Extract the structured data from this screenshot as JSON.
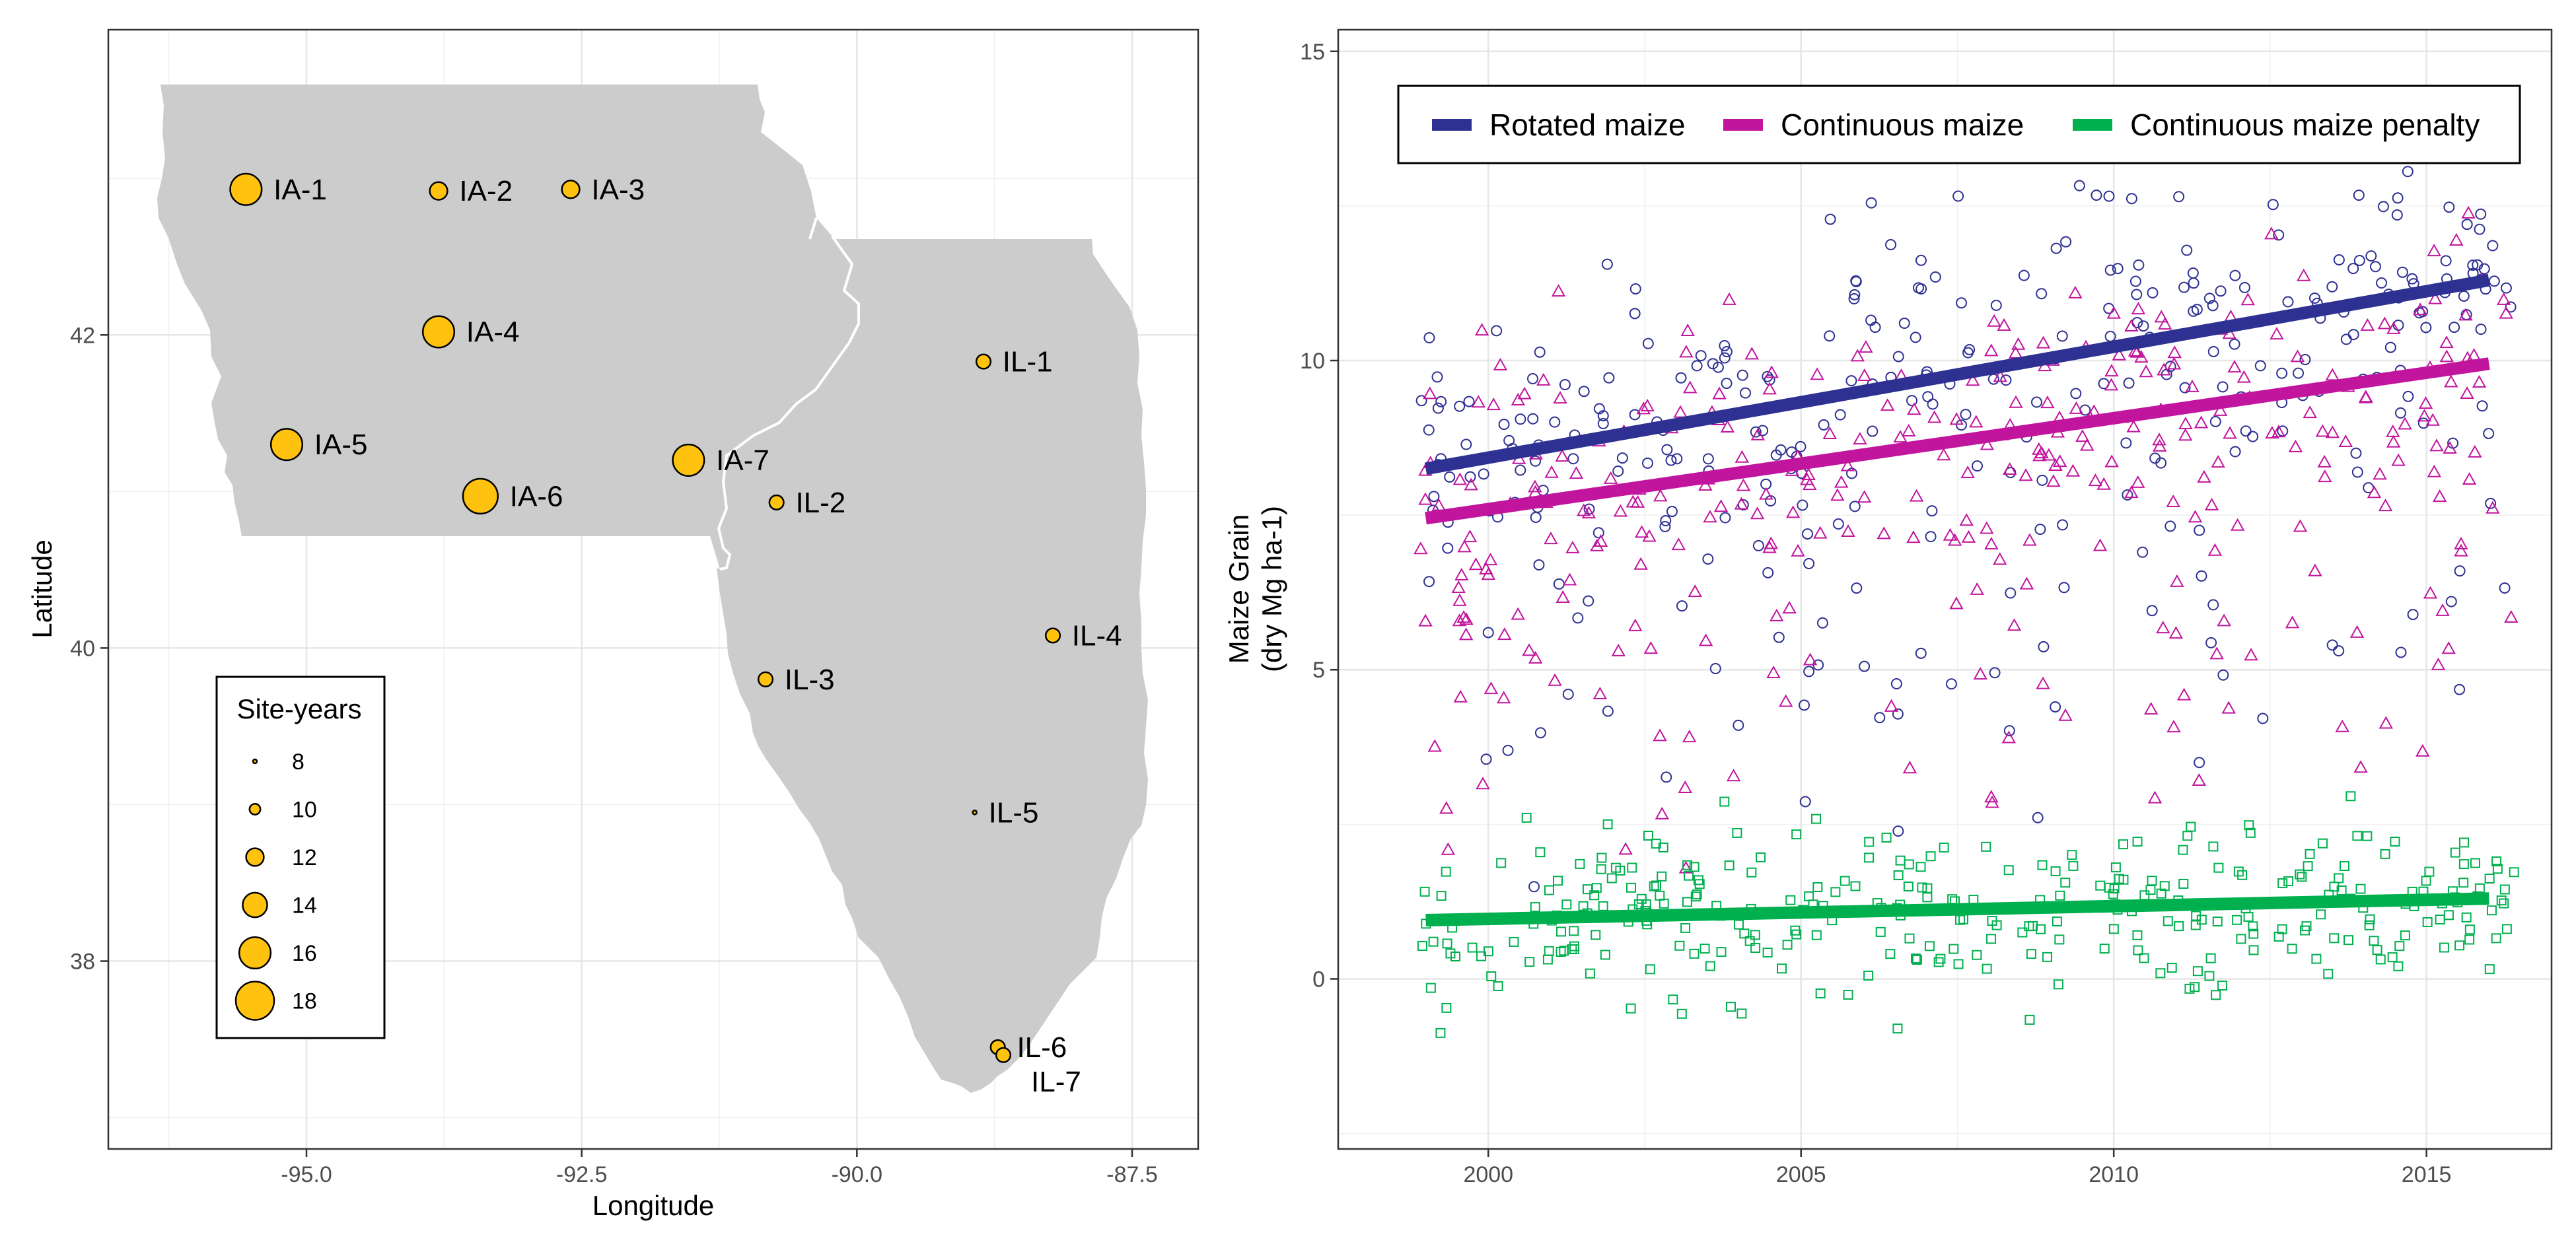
{
  "chart_data": [
    {
      "type": "scatter",
      "xlabel": "Longitude",
      "ylabel": "Latitude",
      "xlim": [
        -96.8,
        -86.9
      ],
      "ylim": [
        36.8,
        43.95
      ],
      "xticks": [
        -95.0,
        -92.5,
        -90.0,
        -87.5
      ],
      "xtick_labels": [
        "-95.0",
        "-92.5",
        "-90.0",
        "-87.5"
      ],
      "yticks": [
        38,
        40,
        42
      ],
      "ytick_labels": [
        "38",
        "40",
        "42"
      ],
      "grid": true,
      "colors": {
        "state_fill": "#cccccc",
        "border": "#ffffff",
        "point_fill": "#ffc20e",
        "point_stroke": "#000000"
      },
      "sites": [
        {
          "label": "IA-1",
          "lon": -95.55,
          "lat": 42.93,
          "site_years": 16
        },
        {
          "label": "IA-2",
          "lon": -93.8,
          "lat": 42.92,
          "site_years": 12
        },
        {
          "label": "IA-3",
          "lon": -92.6,
          "lat": 42.93,
          "site_years": 12
        },
        {
          "label": "IA-4",
          "lon": -93.8,
          "lat": 42.02,
          "site_years": 16
        },
        {
          "label": "IA-5",
          "lon": -95.18,
          "lat": 41.3,
          "site_years": 16
        },
        {
          "label": "IA-6",
          "lon": -93.42,
          "lat": 40.97,
          "site_years": 17
        },
        {
          "label": "IA-7",
          "lon": -91.53,
          "lat": 41.2,
          "site_years": 16
        },
        {
          "label": "IL-1",
          "lon": -88.85,
          "lat": 41.83,
          "site_years": 11
        },
        {
          "label": "IL-2",
          "lon": -90.73,
          "lat": 40.93,
          "site_years": 11
        },
        {
          "label": "IL-3",
          "lon": -90.83,
          "lat": 39.8,
          "site_years": 11
        },
        {
          "label": "IL-4",
          "lon": -88.22,
          "lat": 40.08,
          "site_years": 11
        },
        {
          "label": "IL-5",
          "lon": -88.93,
          "lat": 38.95,
          "site_years": 8
        },
        {
          "label": "IL-6",
          "lon": -88.72,
          "lat": 37.45,
          "site_years": 11
        },
        {
          "label": "IL-7",
          "lon": -88.67,
          "lat": 37.4,
          "site_years": 11
        }
      ],
      "legend": {
        "title": "Site-years",
        "position": "bottom-left",
        "entries": [
          {
            "label": "8",
            "value": 8
          },
          {
            "label": "10",
            "value": 10
          },
          {
            "label": "12",
            "value": 12
          },
          {
            "label": "14",
            "value": 14
          },
          {
            "label": "16",
            "value": 16
          },
          {
            "label": "18",
            "value": 18
          }
        ]
      }
    },
    {
      "type": "scatter",
      "xlabel": "",
      "ylabel": "Maize Grain",
      "ylabel_line2": "(dry Mg ha-1)",
      "xlim": [
        1997.6,
        2017.0
      ],
      "ylim": [
        -2.75,
        15.35
      ],
      "xticks": [
        2000,
        2005,
        2010,
        2015
      ],
      "xtick_labels": [
        "2000",
        "2005",
        "2010",
        "2015"
      ],
      "yticks": [
        0,
        5,
        10,
        15
      ],
      "ytick_labels": [
        "0",
        "5",
        "10",
        "15"
      ],
      "grid": true,
      "legend": {
        "position": "top-right"
      },
      "series": [
        {
          "name": "Rotated maize",
          "color": "#2e3192",
          "marker": "circle",
          "trend": {
            "x": [
              1999.0,
              2016.0
            ],
            "y": [
              8.25,
              11.3
            ]
          }
        },
        {
          "name": "Continuous maize",
          "color": "#c2159e",
          "marker": "triangle",
          "trend": {
            "x": [
              1999.0,
              2016.0
            ],
            "y": [
              7.45,
              9.95
            ]
          }
        },
        {
          "name": "Continuous maize penalty",
          "color": "#00b04f",
          "marker": "square",
          "trend": {
            "x": [
              1999.0,
              2016.0
            ],
            "y": [
              0.95,
              1.3
            ]
          }
        }
      ],
      "note": "Individual observation points approximated; many scattered points per series across 1999-2016."
    }
  ]
}
